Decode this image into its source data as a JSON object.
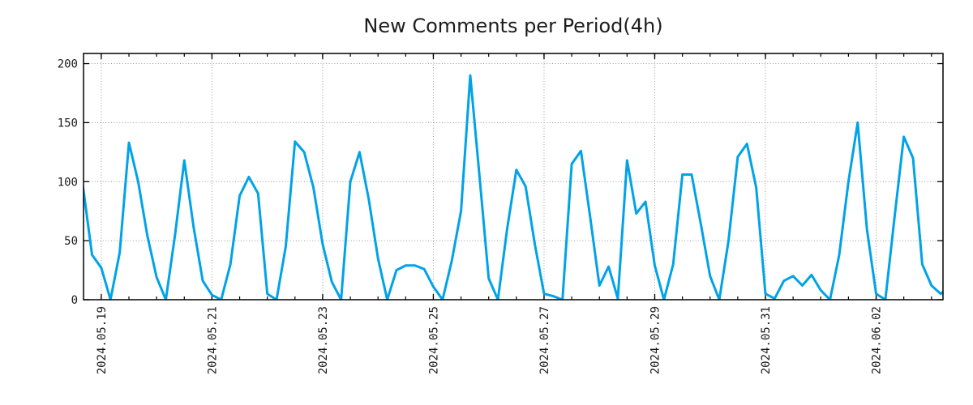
{
  "title": "New Comments per Period(4h)",
  "chart_data": {
    "type": "line",
    "title": "New Comments per Period(4h)",
    "period": "4h",
    "legend": "none",
    "grid": true,
    "line_color": "#00a2e8",
    "grid_color": "#999999",
    "axis_color": "#000000",
    "ylabel": "",
    "xlabel": "",
    "y_ticks": [
      0,
      50,
      100,
      150,
      200
    ],
    "y_range": [
      0,
      208
    ],
    "x_tick_labels": [
      "2024.05.19",
      "2024.05.21",
      "2024.05.23",
      "2024.05.25",
      "2024.05.27",
      "2024.05.29",
      "2024.05.31",
      "2024.06.02"
    ],
    "x_minor_tick_hours": 12,
    "points": [
      {
        "time": "2024.05.18 16:00",
        "value": 97
      },
      {
        "time": "2024.05.18 20:00",
        "value": 38
      },
      {
        "time": "2024.05.19 00:00",
        "value": 27
      },
      {
        "time": "2024.05.19 04:00",
        "value": 0
      },
      {
        "time": "2024.05.19 08:00",
        "value": 40
      },
      {
        "time": "2024.05.19 12:00",
        "value": 133
      },
      {
        "time": "2024.05.19 16:00",
        "value": 100
      },
      {
        "time": "2024.05.19 20:00",
        "value": 54
      },
      {
        "time": "2024.05.20 00:00",
        "value": 19
      },
      {
        "time": "2024.05.20 04:00",
        "value": 0
      },
      {
        "time": "2024.05.20 08:00",
        "value": 55
      },
      {
        "time": "2024.05.20 12:00",
        "value": 118
      },
      {
        "time": "2024.05.20 16:00",
        "value": 62
      },
      {
        "time": "2024.05.20 20:00",
        "value": 16
      },
      {
        "time": "2024.05.21 00:00",
        "value": 4
      },
      {
        "time": "2024.05.21 04:00",
        "value": 0
      },
      {
        "time": "2024.05.21 08:00",
        "value": 30
      },
      {
        "time": "2024.05.21 12:00",
        "value": 88
      },
      {
        "time": "2024.05.21 16:00",
        "value": 104
      },
      {
        "time": "2024.05.21 20:00",
        "value": 90
      },
      {
        "time": "2024.05.22 00:00",
        "value": 5
      },
      {
        "time": "2024.05.22 04:00",
        "value": 0
      },
      {
        "time": "2024.05.22 08:00",
        "value": 45
      },
      {
        "time": "2024.05.22 12:00",
        "value": 134
      },
      {
        "time": "2024.05.22 16:00",
        "value": 125
      },
      {
        "time": "2024.05.22 20:00",
        "value": 95
      },
      {
        "time": "2024.05.23 00:00",
        "value": 47
      },
      {
        "time": "2024.05.23 04:00",
        "value": 15
      },
      {
        "time": "2024.05.23 08:00",
        "value": 0
      },
      {
        "time": "2024.05.23 12:00",
        "value": 100
      },
      {
        "time": "2024.05.23 16:00",
        "value": 125
      },
      {
        "time": "2024.05.23 20:00",
        "value": 85
      },
      {
        "time": "2024.05.24 00:00",
        "value": 35
      },
      {
        "time": "2024.05.24 04:00",
        "value": 0
      },
      {
        "time": "2024.05.24 08:00",
        "value": 25
      },
      {
        "time": "2024.05.24 12:00",
        "value": 29
      },
      {
        "time": "2024.05.24 16:00",
        "value": 29
      },
      {
        "time": "2024.05.24 20:00",
        "value": 26
      },
      {
        "time": "2024.05.25 00:00",
        "value": 11
      },
      {
        "time": "2024.05.25 04:00",
        "value": 0
      },
      {
        "time": "2024.05.25 08:00",
        "value": 33
      },
      {
        "time": "2024.05.25 12:00",
        "value": 75
      },
      {
        "time": "2024.05.25 16:00",
        "value": 190
      },
      {
        "time": "2024.05.25 20:00",
        "value": 105
      },
      {
        "time": "2024.05.26 00:00",
        "value": 18
      },
      {
        "time": "2024.05.26 04:00",
        "value": 0
      },
      {
        "time": "2024.05.26 08:00",
        "value": 60
      },
      {
        "time": "2024.05.26 12:00",
        "value": 110
      },
      {
        "time": "2024.05.26 16:00",
        "value": 96
      },
      {
        "time": "2024.05.26 20:00",
        "value": 47
      },
      {
        "time": "2024.05.27 00:00",
        "value": 5
      },
      {
        "time": "2024.05.27 04:00",
        "value": 3
      },
      {
        "time": "2024.05.27 08:00",
        "value": 0
      },
      {
        "time": "2024.05.27 12:00",
        "value": 115
      },
      {
        "time": "2024.05.27 16:00",
        "value": 126
      },
      {
        "time": "2024.05.27 20:00",
        "value": 70
      },
      {
        "time": "2024.05.28 00:00",
        "value": 12
      },
      {
        "time": "2024.05.28 04:00",
        "value": 28
      },
      {
        "time": "2024.05.28 08:00",
        "value": 1
      },
      {
        "time": "2024.05.28 12:00",
        "value": 118
      },
      {
        "time": "2024.05.28 16:00",
        "value": 73
      },
      {
        "time": "2024.05.28 20:00",
        "value": 83
      },
      {
        "time": "2024.05.29 00:00",
        "value": 29
      },
      {
        "time": "2024.05.29 04:00",
        "value": 0
      },
      {
        "time": "2024.05.29 08:00",
        "value": 30
      },
      {
        "time": "2024.05.29 12:00",
        "value": 106
      },
      {
        "time": "2024.05.29 16:00",
        "value": 106
      },
      {
        "time": "2024.05.29 20:00",
        "value": 64
      },
      {
        "time": "2024.05.30 00:00",
        "value": 20
      },
      {
        "time": "2024.05.30 04:00",
        "value": 0
      },
      {
        "time": "2024.05.30 08:00",
        "value": 50
      },
      {
        "time": "2024.05.30 12:00",
        "value": 121
      },
      {
        "time": "2024.05.30 16:00",
        "value": 132
      },
      {
        "time": "2024.05.30 20:00",
        "value": 95
      },
      {
        "time": "2024.05.31 00:00",
        "value": 5
      },
      {
        "time": "2024.05.31 04:00",
        "value": 1
      },
      {
        "time": "2024.05.31 08:00",
        "value": 16
      },
      {
        "time": "2024.05.31 12:00",
        "value": 20
      },
      {
        "time": "2024.05.31 16:00",
        "value": 12
      },
      {
        "time": "2024.05.31 20:00",
        "value": 21
      },
      {
        "time": "2024.06.01 00:00",
        "value": 8
      },
      {
        "time": "2024.06.01 04:00",
        "value": 0
      },
      {
        "time": "2024.06.01 08:00",
        "value": 38
      },
      {
        "time": "2024.06.01 12:00",
        "value": 100
      },
      {
        "time": "2024.06.01 16:00",
        "value": 150
      },
      {
        "time": "2024.06.01 20:00",
        "value": 60
      },
      {
        "time": "2024.06.02 00:00",
        "value": 5
      },
      {
        "time": "2024.06.02 04:00",
        "value": 0
      },
      {
        "time": "2024.06.02 08:00",
        "value": 70
      },
      {
        "time": "2024.06.02 12:00",
        "value": 138
      },
      {
        "time": "2024.06.02 16:00",
        "value": 120
      },
      {
        "time": "2024.06.02 20:00",
        "value": 30
      },
      {
        "time": "2024.06.03 00:00",
        "value": 12
      },
      {
        "time": "2024.06.03 04:00",
        "value": 5
      },
      {
        "time": "2024.06.03 06:00",
        "value": 8
      }
    ]
  }
}
